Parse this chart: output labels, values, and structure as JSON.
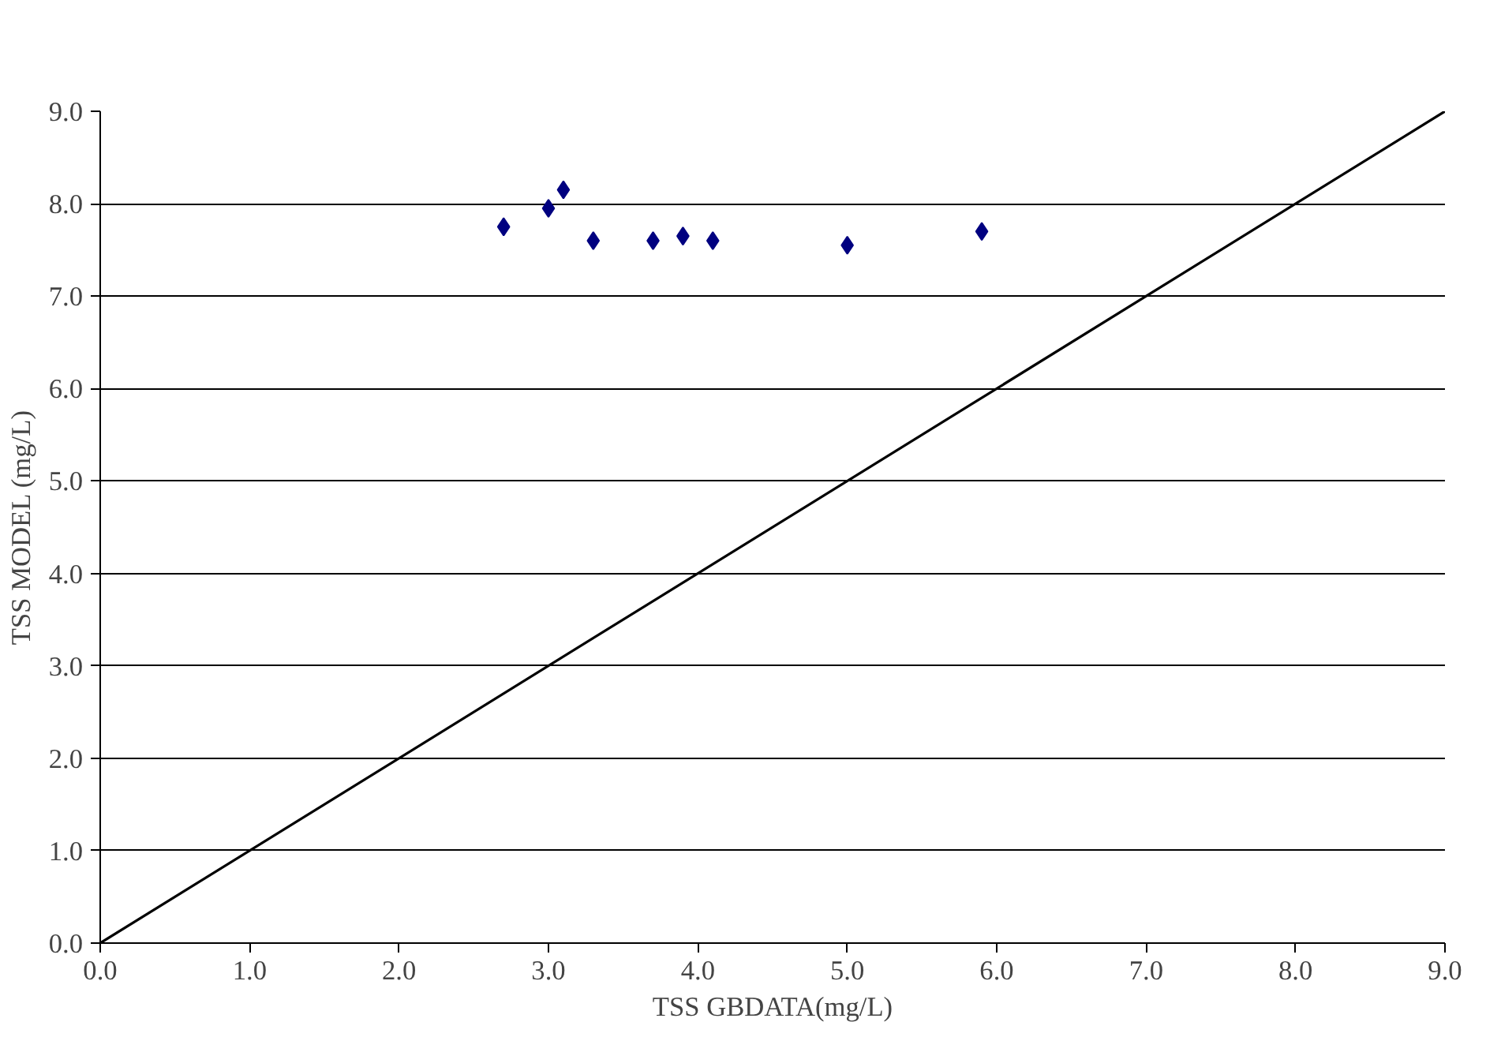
{
  "chart_data": {
    "type": "scatter",
    "xlabel": "TSS GBDATA(mg/L)",
    "ylabel": "TSS MODEL (mg/L)",
    "xlim": [
      0,
      9
    ],
    "ylim": [
      0,
      9
    ],
    "xticks": [
      {
        "value": 0,
        "label": "0.0"
      },
      {
        "value": 1,
        "label": "1.0"
      },
      {
        "value": 2,
        "label": "2.0"
      },
      {
        "value": 3,
        "label": "3.0"
      },
      {
        "value": 4,
        "label": "4.0"
      },
      {
        "value": 5,
        "label": "5.0"
      },
      {
        "value": 6,
        "label": "6.0"
      },
      {
        "value": 7,
        "label": "7.0"
      },
      {
        "value": 8,
        "label": "8.0"
      },
      {
        "value": 9,
        "label": "9.0"
      }
    ],
    "yticks": [
      {
        "value": 0,
        "label": "0.0"
      },
      {
        "value": 1,
        "label": "1.0"
      },
      {
        "value": 2,
        "label": "2.0"
      },
      {
        "value": 3,
        "label": "3.0"
      },
      {
        "value": 4,
        "label": "4.0"
      },
      {
        "value": 5,
        "label": "5.0"
      },
      {
        "value": 6,
        "label": "6.0"
      },
      {
        "value": 7,
        "label": "7.0"
      },
      {
        "value": 8,
        "label": "8.0"
      },
      {
        "value": 9,
        "label": "9.0"
      }
    ],
    "grid": "y",
    "series": [
      {
        "marker": "diamond",
        "color": "#000080",
        "x": [
          2.7,
          3.0,
          3.1,
          3.3,
          3.7,
          3.9,
          4.1,
          5.0,
          5.9
        ],
        "values": [
          7.75,
          7.95,
          8.15,
          7.6,
          7.6,
          7.65,
          7.6,
          7.55,
          7.7
        ]
      },
      {
        "type": "line",
        "marker": "none",
        "color": "#000000",
        "x": [
          0,
          9
        ],
        "values": [
          0,
          9
        ]
      }
    ]
  }
}
